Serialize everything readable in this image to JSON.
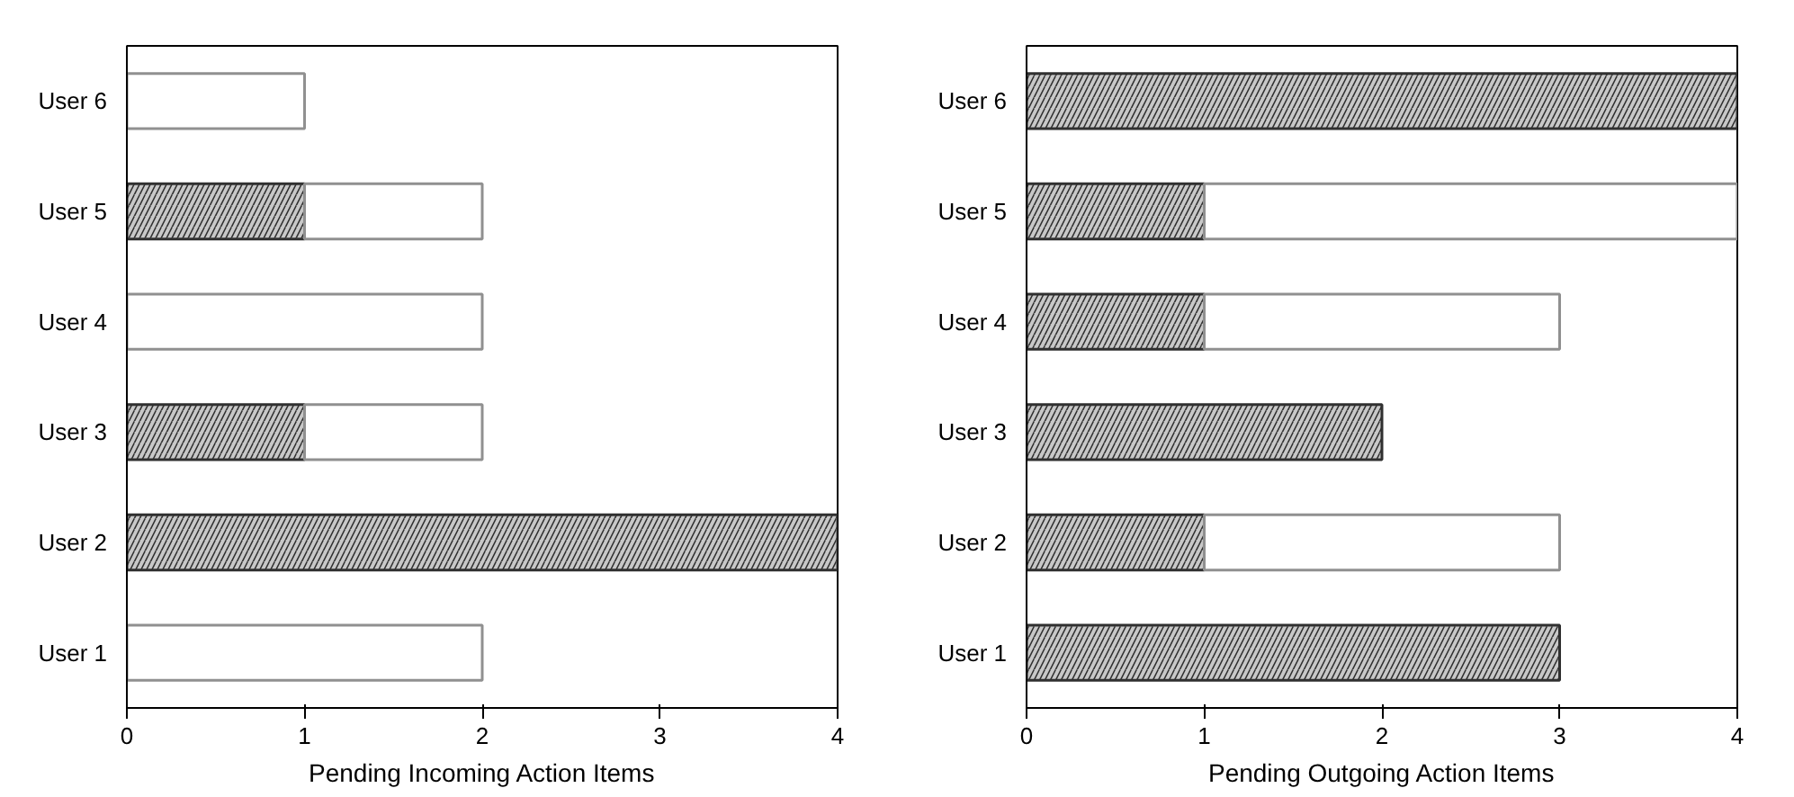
{
  "chart_data": [
    {
      "type": "bar",
      "orientation": "horizontal",
      "stacked": true,
      "xlabel": "Pending Incoming Action Items",
      "categories": [
        "User 6",
        "User 5",
        "User 4",
        "User 3",
        "User 2",
        "User 1"
      ],
      "xlim": [
        0,
        4
      ],
      "xticks": [
        0,
        1,
        2,
        3,
        4
      ],
      "grid": false,
      "series": [
        {
          "color": "#c8c8c8",
          "values": [
            null,
            1,
            null,
            1,
            4,
            null
          ]
        },
        {
          "color": "#ffffff",
          "values": [
            1,
            1,
            2,
            1,
            null,
            2
          ]
        }
      ]
    },
    {
      "type": "bar",
      "orientation": "horizontal",
      "stacked": true,
      "xlabel": "Pending Outgoing Action Items",
      "categories": [
        "User 6",
        "User 5",
        "User 4",
        "User 3",
        "User 2",
        "User 1"
      ],
      "xlim": [
        0,
        4
      ],
      "xticks": [
        0,
        1,
        2,
        3,
        4
      ],
      "grid": false,
      "series": [
        {
          "color": "#c8c8c8",
          "values": [
            4,
            1,
            1,
            2,
            1,
            3
          ]
        },
        {
          "color": "#ffffff",
          "values": [
            null,
            3,
            2,
            null,
            2,
            null
          ]
        }
      ]
    }
  ]
}
